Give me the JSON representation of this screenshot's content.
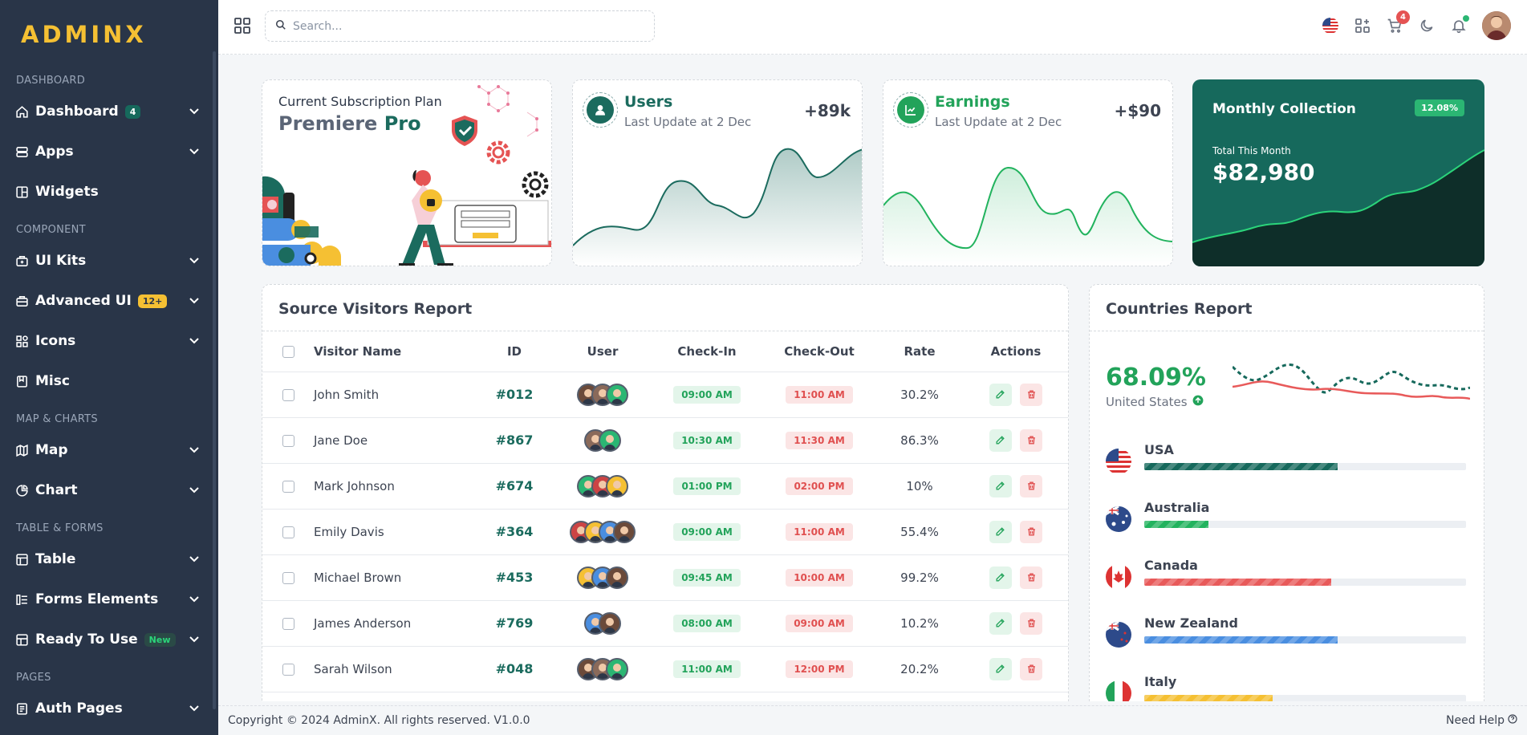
{
  "brand": {
    "logo_text": "ADMINX",
    "logo_color": "#f5c033"
  },
  "sidebar": {
    "sections": {
      "dashboard": "DASHBOARD",
      "component": "COMPONENT",
      "map_charts": "MAP & CHARTS",
      "table_forms": "TABLE & FORMS",
      "pages": "PAGES"
    },
    "items": {
      "dashboard": {
        "label": "Dashboard",
        "badge": "4",
        "icon": "home-icon"
      },
      "apps": {
        "label": "Apps",
        "icon": "server-icon"
      },
      "widgets": {
        "label": "Widgets",
        "icon": "layout-icon"
      },
      "ui_kits": {
        "label": "UI Kits",
        "icon": "briefcase-plus-icon"
      },
      "advanced_ui": {
        "label": "Advanced UI",
        "badge": "12+",
        "icon": "briefcase-icon"
      },
      "icons": {
        "label": "Icons",
        "icon": "shapes-icon"
      },
      "misc": {
        "label": "Misc",
        "icon": "note-icon"
      },
      "map": {
        "label": "Map",
        "icon": "map-icon"
      },
      "chart": {
        "label": "Chart",
        "icon": "pie-chart-icon"
      },
      "table": {
        "label": "Table",
        "icon": "table-icon"
      },
      "forms_elements": {
        "label": "Forms Elements",
        "icon": "form-icon"
      },
      "ready_to_use": {
        "label": "Ready To Use",
        "badge": "New",
        "icon": "ready-icon"
      },
      "auth_pages": {
        "label": "Auth Pages",
        "icon": "book-icon"
      }
    }
  },
  "header": {
    "search_placeholder": "Search...",
    "cart_count": "4"
  },
  "plan": {
    "label": "Current Subscription Plan",
    "name_part1": "Premiere",
    "name_part2": "Pro"
  },
  "users": {
    "title": "Users",
    "subtitle": "Last Update at 2 Dec",
    "value": "+89k",
    "color": "#1b6b5e"
  },
  "earnings": {
    "title": "Earnings",
    "subtitle": "Last Update at 2 Dec",
    "value": "+$90",
    "color": "#22a35a"
  },
  "monthly": {
    "title": "Monthly Collection",
    "pill": "12.08%",
    "small": "Total This Month",
    "amount": "$82,980",
    "bg": "#16695c"
  },
  "visitors": {
    "title": "Source Visitors Report",
    "columns": [
      "Visitor Name",
      "ID",
      "User",
      "Check-In",
      "Check-Out",
      "Rate",
      "Actions"
    ],
    "rows": [
      {
        "name": "John Smith",
        "id": "#012",
        "in": "09:00 AM",
        "out": "11:00 AM",
        "rate": "30.2%",
        "avatars": 3
      },
      {
        "name": "Jane Doe",
        "id": "#867",
        "in": "10:30 AM",
        "out": "11:30 AM",
        "rate": "86.3%",
        "avatars": 2
      },
      {
        "name": "Mark Johnson",
        "id": "#674",
        "in": "01:00 PM",
        "out": "02:00 PM",
        "rate": "10%",
        "avatars": 3
      },
      {
        "name": "Emily Davis",
        "id": "#364",
        "in": "09:00 AM",
        "out": "11:00 AM",
        "rate": "55.4%",
        "avatars": 4
      },
      {
        "name": "Michael Brown",
        "id": "#453",
        "in": "09:45 AM",
        "out": "10:00 AM",
        "rate": "99.2%",
        "avatars": 3
      },
      {
        "name": "James Anderson",
        "id": "#769",
        "in": "08:00 AM",
        "out": "09:00 AM",
        "rate": "10.2%",
        "avatars": 2
      },
      {
        "name": "Sarah Wilson",
        "id": "#048",
        "in": "11:00 AM",
        "out": "12:00 PM",
        "rate": "20.2%",
        "avatars": 3
      }
    ]
  },
  "countries": {
    "title": "Countries Report",
    "top_pct": "68.09%",
    "top_country": "United States",
    "list": [
      {
        "name": "USA",
        "pct": 60,
        "color": "#16695c",
        "flag": "us-flag-icon"
      },
      {
        "name": "Australia",
        "pct": 20,
        "color": "#22b35e",
        "flag": "australia-flag-icon"
      },
      {
        "name": "Canada",
        "pct": 58,
        "color": "#e85a5a",
        "flag": "canada-flag-icon"
      },
      {
        "name": "New Zealand",
        "pct": 60,
        "color": "#4a8ee0",
        "flag": "new-zealand-flag-icon"
      },
      {
        "name": "Italy",
        "pct": 40,
        "color": "#f5c033",
        "flag": "italy-flag-icon"
      }
    ]
  },
  "footer": {
    "copyright": "Copyright © 2024 AdminX. All rights reserved. V1.0.0",
    "help": "Need Help"
  }
}
